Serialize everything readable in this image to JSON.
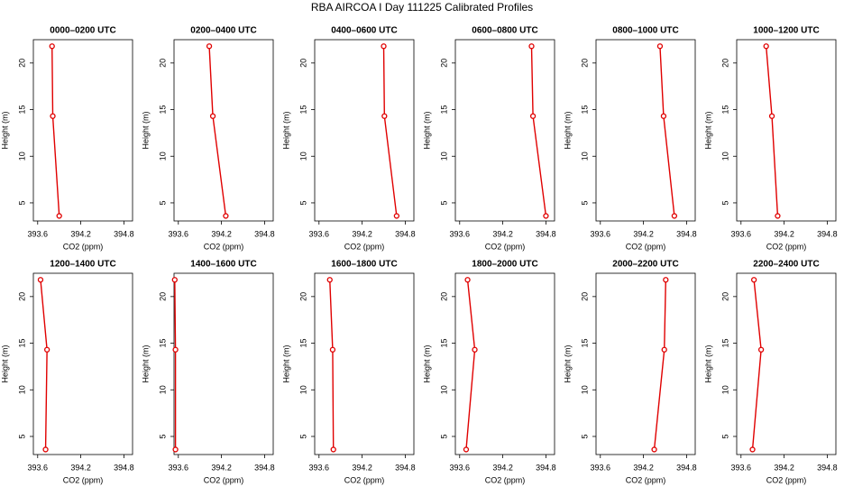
{
  "title": "RBA AIRCOA I  Day 111225  Calibrated Profiles",
  "chart_data": [
    {
      "type": "line",
      "title": "0000–0200 UTC",
      "xlabel": "CO2 (ppm)",
      "ylabel": "Height (m)",
      "color": "#e00000",
      "x": [
        393.8,
        393.81,
        393.9
      ],
      "y": [
        21.8,
        14.3,
        3.6
      ],
      "xlim": [
        393.54,
        394.92
      ],
      "ylim": [
        3.06,
        22.5
      ],
      "xticks": [
        393.6,
        394.2,
        394.8
      ],
      "yticks": [
        5,
        10,
        15,
        20
      ]
    },
    {
      "type": "line",
      "title": "0200–0400 UTC",
      "xlabel": "CO2 (ppm)",
      "ylabel": "Height (m)",
      "color": "#e00000",
      "x": [
        394.03,
        394.08,
        394.26
      ],
      "y": [
        21.8,
        14.3,
        3.6
      ],
      "xlim": [
        393.54,
        394.92
      ],
      "ylim": [
        3.06,
        22.5
      ],
      "xticks": [
        393.6,
        394.2,
        394.8
      ],
      "yticks": [
        5,
        10,
        15,
        20
      ]
    },
    {
      "type": "line",
      "title": "0400–0600 UTC",
      "xlabel": "CO2 (ppm)",
      "ylabel": "Height (m)",
      "color": "#e00000",
      "x": [
        394.5,
        394.51,
        394.68
      ],
      "y": [
        21.8,
        14.3,
        3.6
      ],
      "xlim": [
        393.54,
        394.92
      ],
      "ylim": [
        3.06,
        22.5
      ],
      "xticks": [
        393.6,
        394.2,
        394.8
      ],
      "yticks": [
        5,
        10,
        15,
        20
      ]
    },
    {
      "type": "line",
      "title": "0600–0800 UTC",
      "xlabel": "CO2 (ppm)",
      "ylabel": "Height (m)",
      "color": "#e00000",
      "x": [
        394.6,
        394.62,
        394.8
      ],
      "y": [
        21.8,
        14.3,
        3.6
      ],
      "xlim": [
        393.54,
        394.92
      ],
      "ylim": [
        3.06,
        22.5
      ],
      "xticks": [
        393.6,
        394.2,
        394.8
      ],
      "yticks": [
        5,
        10,
        15,
        20
      ]
    },
    {
      "type": "line",
      "title": "0800–1000 UTC",
      "xlabel": "CO2 (ppm)",
      "ylabel": "Height (m)",
      "color": "#e00000",
      "x": [
        394.43,
        394.48,
        394.63
      ],
      "y": [
        21.8,
        14.3,
        3.6
      ],
      "xlim": [
        393.54,
        394.92
      ],
      "ylim": [
        3.06,
        22.5
      ],
      "xticks": [
        393.6,
        394.2,
        394.8
      ],
      "yticks": [
        5,
        10,
        15,
        20
      ]
    },
    {
      "type": "line",
      "title": "1000–1200 UTC",
      "xlabel": "CO2 (ppm)",
      "ylabel": "Height (m)",
      "color": "#e00000",
      "x": [
        393.95,
        394.03,
        394.11
      ],
      "y": [
        21.8,
        14.3,
        3.6
      ],
      "xlim": [
        393.54,
        394.92
      ],
      "ylim": [
        3.06,
        22.5
      ],
      "xticks": [
        393.6,
        394.2,
        394.8
      ],
      "yticks": [
        5,
        10,
        15,
        20
      ]
    },
    {
      "type": "line",
      "title": "1200–1400 UTC",
      "xlabel": "CO2 (ppm)",
      "ylabel": "Height (m)",
      "color": "#e00000",
      "x": [
        393.64,
        393.73,
        393.71
      ],
      "y": [
        21.8,
        14.3,
        3.6
      ],
      "xlim": [
        393.54,
        394.92
      ],
      "ylim": [
        3.06,
        22.5
      ],
      "xticks": [
        393.6,
        394.2,
        394.8
      ],
      "yticks": [
        5,
        10,
        15,
        20
      ]
    },
    {
      "type": "line",
      "title": "1400–1600 UTC",
      "xlabel": "CO2 (ppm)",
      "ylabel": "Height (m)",
      "color": "#e00000",
      "x": [
        393.55,
        393.56,
        393.56
      ],
      "y": [
        21.8,
        14.3,
        3.6
      ],
      "xlim": [
        393.54,
        394.92
      ],
      "ylim": [
        3.06,
        22.5
      ],
      "xticks": [
        393.6,
        394.2,
        394.8
      ],
      "yticks": [
        5,
        10,
        15,
        20
      ]
    },
    {
      "type": "line",
      "title": "1600–1800 UTC",
      "xlabel": "CO2 (ppm)",
      "ylabel": "Height (m)",
      "color": "#e00000",
      "x": [
        393.75,
        393.79,
        393.8
      ],
      "y": [
        21.8,
        14.3,
        3.6
      ],
      "xlim": [
        393.54,
        394.92
      ],
      "ylim": [
        3.06,
        22.5
      ],
      "xticks": [
        393.6,
        394.2,
        394.8
      ],
      "yticks": [
        5,
        10,
        15,
        20
      ]
    },
    {
      "type": "line",
      "title": "1800–2000 UTC",
      "xlabel": "CO2 (ppm)",
      "ylabel": "Height (m)",
      "color": "#e00000",
      "x": [
        393.71,
        393.81,
        393.69
      ],
      "y": [
        21.8,
        14.3,
        3.6
      ],
      "xlim": [
        393.54,
        394.92
      ],
      "ylim": [
        3.06,
        22.5
      ],
      "xticks": [
        393.6,
        394.2,
        394.8
      ],
      "yticks": [
        5,
        10,
        15,
        20
      ]
    },
    {
      "type": "line",
      "title": "2000–2200 UTC",
      "xlabel": "CO2 (ppm)",
      "ylabel": "Height (m)",
      "color": "#e00000",
      "x": [
        394.51,
        394.49,
        394.35
      ],
      "y": [
        21.8,
        14.3,
        3.6
      ],
      "xlim": [
        393.54,
        394.92
      ],
      "ylim": [
        3.06,
        22.5
      ],
      "xticks": [
        393.6,
        394.2,
        394.8
      ],
      "yticks": [
        5,
        10,
        15,
        20
      ]
    },
    {
      "type": "line",
      "title": "2200–2400 UTC",
      "xlabel": "CO2 (ppm)",
      "ylabel": "Height (m)",
      "color": "#e00000",
      "x": [
        393.78,
        393.88,
        393.76
      ],
      "y": [
        21.8,
        14.3,
        3.6
      ],
      "xlim": [
        393.54,
        394.92
      ],
      "ylim": [
        3.06,
        22.5
      ],
      "xticks": [
        393.6,
        394.2,
        394.8
      ],
      "yticks": [
        5,
        10,
        15,
        20
      ]
    }
  ]
}
